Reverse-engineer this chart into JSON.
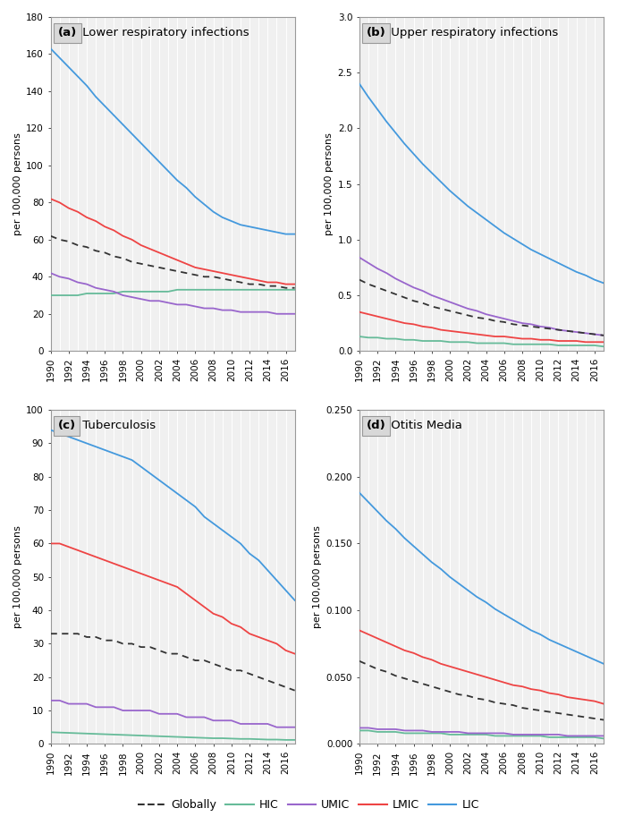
{
  "years": [
    1990,
    1991,
    1992,
    1993,
    1994,
    1995,
    1996,
    1997,
    1998,
    1999,
    2000,
    2001,
    2002,
    2003,
    2004,
    2005,
    2006,
    2007,
    2008,
    2009,
    2010,
    2011,
    2012,
    2013,
    2014,
    2015,
    2016,
    2017
  ],
  "panels": [
    {
      "label": "(a)",
      "title": " Lower respiratory infections",
      "ylim": [
        0,
        180
      ],
      "yticks": [
        0,
        20,
        40,
        60,
        80,
        100,
        120,
        140,
        160,
        180
      ],
      "ylabel": "per 100,000 persons",
      "series": {
        "LIC": [
          163,
          158,
          153,
          148,
          143,
          137,
          132,
          127,
          122,
          117,
          112,
          107,
          102,
          97,
          92,
          88,
          83,
          79,
          75,
          72,
          70,
          68,
          67,
          66,
          65,
          64,
          63,
          63
        ],
        "LMIC": [
          82,
          80,
          77,
          75,
          72,
          70,
          67,
          65,
          62,
          60,
          57,
          55,
          53,
          51,
          49,
          47,
          45,
          44,
          43,
          42,
          41,
          40,
          39,
          38,
          37,
          37,
          36,
          36
        ],
        "Globally": [
          62,
          60,
          59,
          57,
          56,
          54,
          53,
          51,
          50,
          48,
          47,
          46,
          45,
          44,
          43,
          42,
          41,
          40,
          40,
          39,
          38,
          37,
          36,
          36,
          35,
          35,
          34,
          34
        ],
        "UMIC": [
          42,
          40,
          39,
          37,
          36,
          34,
          33,
          32,
          30,
          29,
          28,
          27,
          27,
          26,
          25,
          25,
          24,
          23,
          23,
          22,
          22,
          21,
          21,
          21,
          21,
          20,
          20,
          20
        ],
        "HIC": [
          30,
          30,
          30,
          30,
          31,
          31,
          31,
          31,
          32,
          32,
          32,
          32,
          32,
          32,
          33,
          33,
          33,
          33,
          33,
          33,
          33,
          33,
          33,
          33,
          33,
          33,
          33,
          33
        ]
      }
    },
    {
      "label": "(b)",
      "title": " Upper respiratory infections",
      "ylim": [
        0,
        3.0
      ],
      "yticks": [
        0.0,
        0.5,
        1.0,
        1.5,
        2.0,
        2.5,
        3.0
      ],
      "ylabel": "per 100,000 persons",
      "series": {
        "LIC": [
          2.4,
          2.28,
          2.17,
          2.06,
          1.96,
          1.86,
          1.77,
          1.68,
          1.6,
          1.52,
          1.44,
          1.37,
          1.3,
          1.24,
          1.18,
          1.12,
          1.06,
          1.01,
          0.96,
          0.91,
          0.87,
          0.83,
          0.79,
          0.75,
          0.71,
          0.68,
          0.64,
          0.61
        ],
        "UMIC": [
          0.84,
          0.79,
          0.74,
          0.7,
          0.65,
          0.61,
          0.57,
          0.54,
          0.5,
          0.47,
          0.44,
          0.41,
          0.38,
          0.36,
          0.33,
          0.31,
          0.29,
          0.27,
          0.25,
          0.24,
          0.22,
          0.21,
          0.19,
          0.18,
          0.17,
          0.16,
          0.15,
          0.14
        ],
        "Globally": [
          0.64,
          0.6,
          0.57,
          0.54,
          0.51,
          0.48,
          0.45,
          0.43,
          0.4,
          0.38,
          0.36,
          0.34,
          0.32,
          0.3,
          0.29,
          0.27,
          0.26,
          0.24,
          0.23,
          0.22,
          0.21,
          0.2,
          0.19,
          0.18,
          0.17,
          0.16,
          0.15,
          0.14
        ],
        "LMIC": [
          0.35,
          0.33,
          0.31,
          0.29,
          0.27,
          0.25,
          0.24,
          0.22,
          0.21,
          0.19,
          0.18,
          0.17,
          0.16,
          0.15,
          0.14,
          0.13,
          0.13,
          0.12,
          0.11,
          0.11,
          0.1,
          0.1,
          0.09,
          0.09,
          0.09,
          0.08,
          0.08,
          0.08
        ],
        "HIC": [
          0.13,
          0.12,
          0.12,
          0.11,
          0.11,
          0.1,
          0.1,
          0.09,
          0.09,
          0.09,
          0.08,
          0.08,
          0.08,
          0.07,
          0.07,
          0.07,
          0.07,
          0.06,
          0.06,
          0.06,
          0.06,
          0.06,
          0.05,
          0.05,
          0.05,
          0.05,
          0.05,
          0.04
        ]
      }
    },
    {
      "label": "(c)",
      "title": " Tuberculosis",
      "ylim": [
        0,
        100
      ],
      "yticks": [
        0,
        10,
        20,
        30,
        40,
        50,
        60,
        70,
        80,
        90,
        100
      ],
      "ylabel": "per 100,000 persons",
      "series": {
        "LIC": [
          94,
          93,
          92,
          91,
          90,
          89,
          88,
          87,
          86,
          85,
          83,
          81,
          79,
          77,
          75,
          73,
          71,
          68,
          66,
          64,
          62,
          60,
          57,
          55,
          52,
          49,
          46,
          43
        ],
        "LMIC": [
          60,
          60,
          59,
          58,
          57,
          56,
          55,
          54,
          53,
          52,
          51,
          50,
          49,
          48,
          47,
          45,
          43,
          41,
          39,
          38,
          36,
          35,
          33,
          32,
          31,
          30,
          28,
          27
        ],
        "Globally": [
          33,
          33,
          33,
          33,
          32,
          32,
          31,
          31,
          30,
          30,
          29,
          29,
          28,
          27,
          27,
          26,
          25,
          25,
          24,
          23,
          22,
          22,
          21,
          20,
          19,
          18,
          17,
          16
        ],
        "UMIC": [
          13,
          13,
          12,
          12,
          12,
          11,
          11,
          11,
          10,
          10,
          10,
          10,
          9,
          9,
          9,
          8,
          8,
          8,
          7,
          7,
          7,
          6,
          6,
          6,
          6,
          5,
          5,
          5
        ],
        "HIC": [
          3.5,
          3.4,
          3.3,
          3.2,
          3.1,
          3.0,
          2.9,
          2.8,
          2.7,
          2.6,
          2.5,
          2.4,
          2.3,
          2.2,
          2.1,
          2.0,
          1.9,
          1.8,
          1.7,
          1.7,
          1.6,
          1.5,
          1.5,
          1.4,
          1.3,
          1.3,
          1.2,
          1.2
        ]
      }
    },
    {
      "label": "(d)",
      "title": " Otitis Media",
      "ylim": [
        0.0,
        0.25
      ],
      "yticks": [
        0.0,
        0.05,
        0.1,
        0.15,
        0.2,
        0.25
      ],
      "ylabel": "per 100,000 persons",
      "series": {
        "LIC": [
          0.188,
          0.181,
          0.174,
          0.167,
          0.161,
          0.154,
          0.148,
          0.142,
          0.136,
          0.131,
          0.125,
          0.12,
          0.115,
          0.11,
          0.106,
          0.101,
          0.097,
          0.093,
          0.089,
          0.085,
          0.082,
          0.078,
          0.075,
          0.072,
          0.069,
          0.066,
          0.063,
          0.06
        ],
        "LMIC": [
          0.085,
          0.082,
          0.079,
          0.076,
          0.073,
          0.07,
          0.068,
          0.065,
          0.063,
          0.06,
          0.058,
          0.056,
          0.054,
          0.052,
          0.05,
          0.048,
          0.046,
          0.044,
          0.043,
          0.041,
          0.04,
          0.038,
          0.037,
          0.035,
          0.034,
          0.033,
          0.032,
          0.03
        ],
        "Globally": [
          0.062,
          0.059,
          0.056,
          0.054,
          0.051,
          0.049,
          0.047,
          0.045,
          0.043,
          0.041,
          0.039,
          0.037,
          0.036,
          0.034,
          0.033,
          0.031,
          0.03,
          0.029,
          0.027,
          0.026,
          0.025,
          0.024,
          0.023,
          0.022,
          0.021,
          0.02,
          0.019,
          0.018
        ],
        "UMIC": [
          0.012,
          0.012,
          0.011,
          0.011,
          0.011,
          0.01,
          0.01,
          0.01,
          0.009,
          0.009,
          0.009,
          0.009,
          0.008,
          0.008,
          0.008,
          0.008,
          0.008,
          0.007,
          0.007,
          0.007,
          0.007,
          0.007,
          0.007,
          0.006,
          0.006,
          0.006,
          0.006,
          0.006
        ],
        "HIC": [
          0.01,
          0.01,
          0.009,
          0.009,
          0.009,
          0.008,
          0.008,
          0.008,
          0.008,
          0.008,
          0.007,
          0.007,
          0.007,
          0.007,
          0.007,
          0.006,
          0.006,
          0.006,
          0.006,
          0.006,
          0.006,
          0.005,
          0.005,
          0.005,
          0.005,
          0.005,
          0.005,
          0.004
        ]
      }
    }
  ],
  "colors": {
    "Globally": "#333333",
    "HIC": "#66bb99",
    "UMIC": "#9966cc",
    "LMIC": "#ee4444",
    "LIC": "#4499dd"
  },
  "legend_order": [
    "Globally",
    "HIC",
    "UMIC",
    "LMIC",
    "LIC"
  ],
  "axes_bg": "#f0f0f0",
  "fig_bg": "#ffffff",
  "grid_color": "#ffffff",
  "spine_color": "#999999",
  "title_box_color": "#d8d8d8"
}
